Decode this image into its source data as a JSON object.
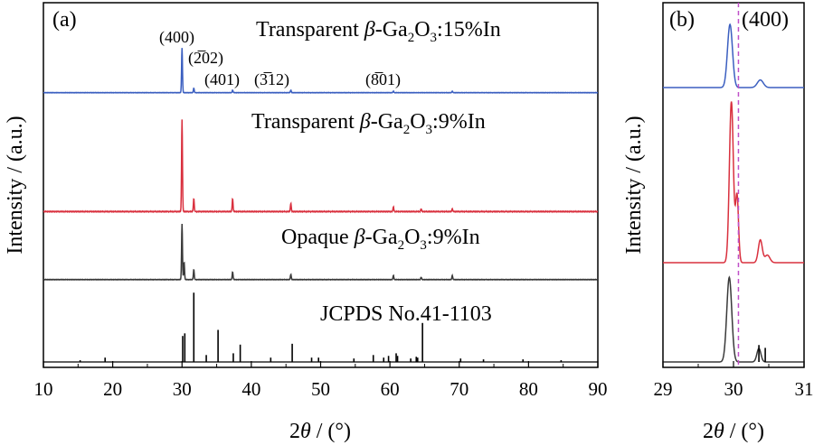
{
  "chart_data": [
    {
      "panel_label": "(a)",
      "type": "line",
      "xlabel": "2θ / (°)",
      "ylabel": "Intensity / (a.u.)",
      "xlim": [
        10,
        90
      ],
      "x_ticks": [
        10,
        20,
        30,
        40,
        50,
        60,
        70,
        80,
        90
      ],
      "y_ticks_shown": false,
      "series": [
        {
          "name": "Transparent β-Ga2O3:15%In",
          "color": "#3b5fc0",
          "baseline": 0.03,
          "peaks": [
            [
              30.0,
              0.9
            ],
            [
              31.7,
              0.09
            ],
            [
              37.3,
              0.05
            ],
            [
              45.7,
              0.05
            ],
            [
              60.5,
              0.03
            ],
            [
              69.0,
              0.03
            ]
          ]
        },
        {
          "name": "Transparent β-Ga2O3:9%In",
          "color": "#d9303e",
          "baseline": 0.03,
          "peaks": [
            [
              30.0,
              1.0
            ],
            [
              31.7,
              0.14
            ],
            [
              37.3,
              0.14
            ],
            [
              45.7,
              0.09
            ],
            [
              60.5,
              0.05
            ],
            [
              64.5,
              0.03
            ],
            [
              69.0,
              0.03
            ]
          ]
        },
        {
          "name": "Opaque β-Ga2O3:9%In",
          "color": "#3a3a3a",
          "baseline": 0.02,
          "peaks": [
            [
              30.0,
              0.95
            ],
            [
              30.3,
              0.3
            ],
            [
              31.7,
              0.17
            ],
            [
              37.3,
              0.13
            ],
            [
              45.7,
              0.09
            ],
            [
              60.5,
              0.07
            ],
            [
              64.5,
              0.04
            ],
            [
              69.0,
              0.07
            ]
          ]
        },
        {
          "name": "JCPDS No.41-1103",
          "color": "#000000",
          "type": "stick",
          "sticks": [
            [
              15.3,
              0.02
            ],
            [
              18.9,
              0.05
            ],
            [
              30.1,
              0.3
            ],
            [
              30.4,
              0.33
            ],
            [
              31.7,
              0.8
            ],
            [
              33.5,
              0.08
            ],
            [
              35.2,
              0.37
            ],
            [
              37.4,
              0.1
            ],
            [
              38.4,
              0.2
            ],
            [
              42.8,
              0.05
            ],
            [
              45.9,
              0.21
            ],
            [
              48.7,
              0.05
            ],
            [
              49.7,
              0.05
            ],
            [
              54.8,
              0.04
            ],
            [
              57.6,
              0.08
            ],
            [
              59.1,
              0.05
            ],
            [
              59.8,
              0.07
            ],
            [
              60.9,
              0.1
            ],
            [
              61.1,
              0.07
            ],
            [
              63.0,
              0.04
            ],
            [
              63.8,
              0.06
            ],
            [
              64.0,
              0.05
            ],
            [
              64.7,
              0.45
            ],
            [
              70.2,
              0.04
            ],
            [
              73.5,
              0.03
            ],
            [
              79.2,
              0.03
            ],
            [
              84.7,
              0.02
            ]
          ]
        }
      ],
      "peak_labels": [
        "(400)",
        "(2̅02)",
        "(401)",
        "(3̅12)",
        "(8̅01)"
      ]
    },
    {
      "panel_label": "(b)",
      "type": "line",
      "xlabel": "2θ / (°)",
      "ylabel": "Intensity / (a.u.)",
      "xlim": [
        29,
        31
      ],
      "x_ticks": [
        29,
        30,
        31
      ],
      "y_ticks_shown": false,
      "annotation": "(400)",
      "reference_line_x": 30.07,
      "series": [
        {
          "color": "#3b5fc0",
          "peaks": [
            [
              29.95,
              0.5,
              0.05
            ],
            [
              30.38,
              0.06,
              0.06
            ]
          ]
        },
        {
          "color": "#d9303e",
          "peaks": [
            [
              29.97,
              0.85,
              0.04
            ],
            [
              30.05,
              0.35,
              0.03
            ],
            [
              30.38,
              0.12,
              0.04
            ],
            [
              30.48,
              0.04,
              0.05
            ]
          ]
        },
        {
          "color": "#3a3a3a",
          "peaks": [
            [
              29.94,
              0.75,
              0.05
            ],
            [
              30.36,
              0.12,
              0.04
            ]
          ],
          "sticks": [
            [
              30.36,
              0.12
            ],
            [
              30.45,
              0.1
            ]
          ]
        }
      ]
    }
  ]
}
